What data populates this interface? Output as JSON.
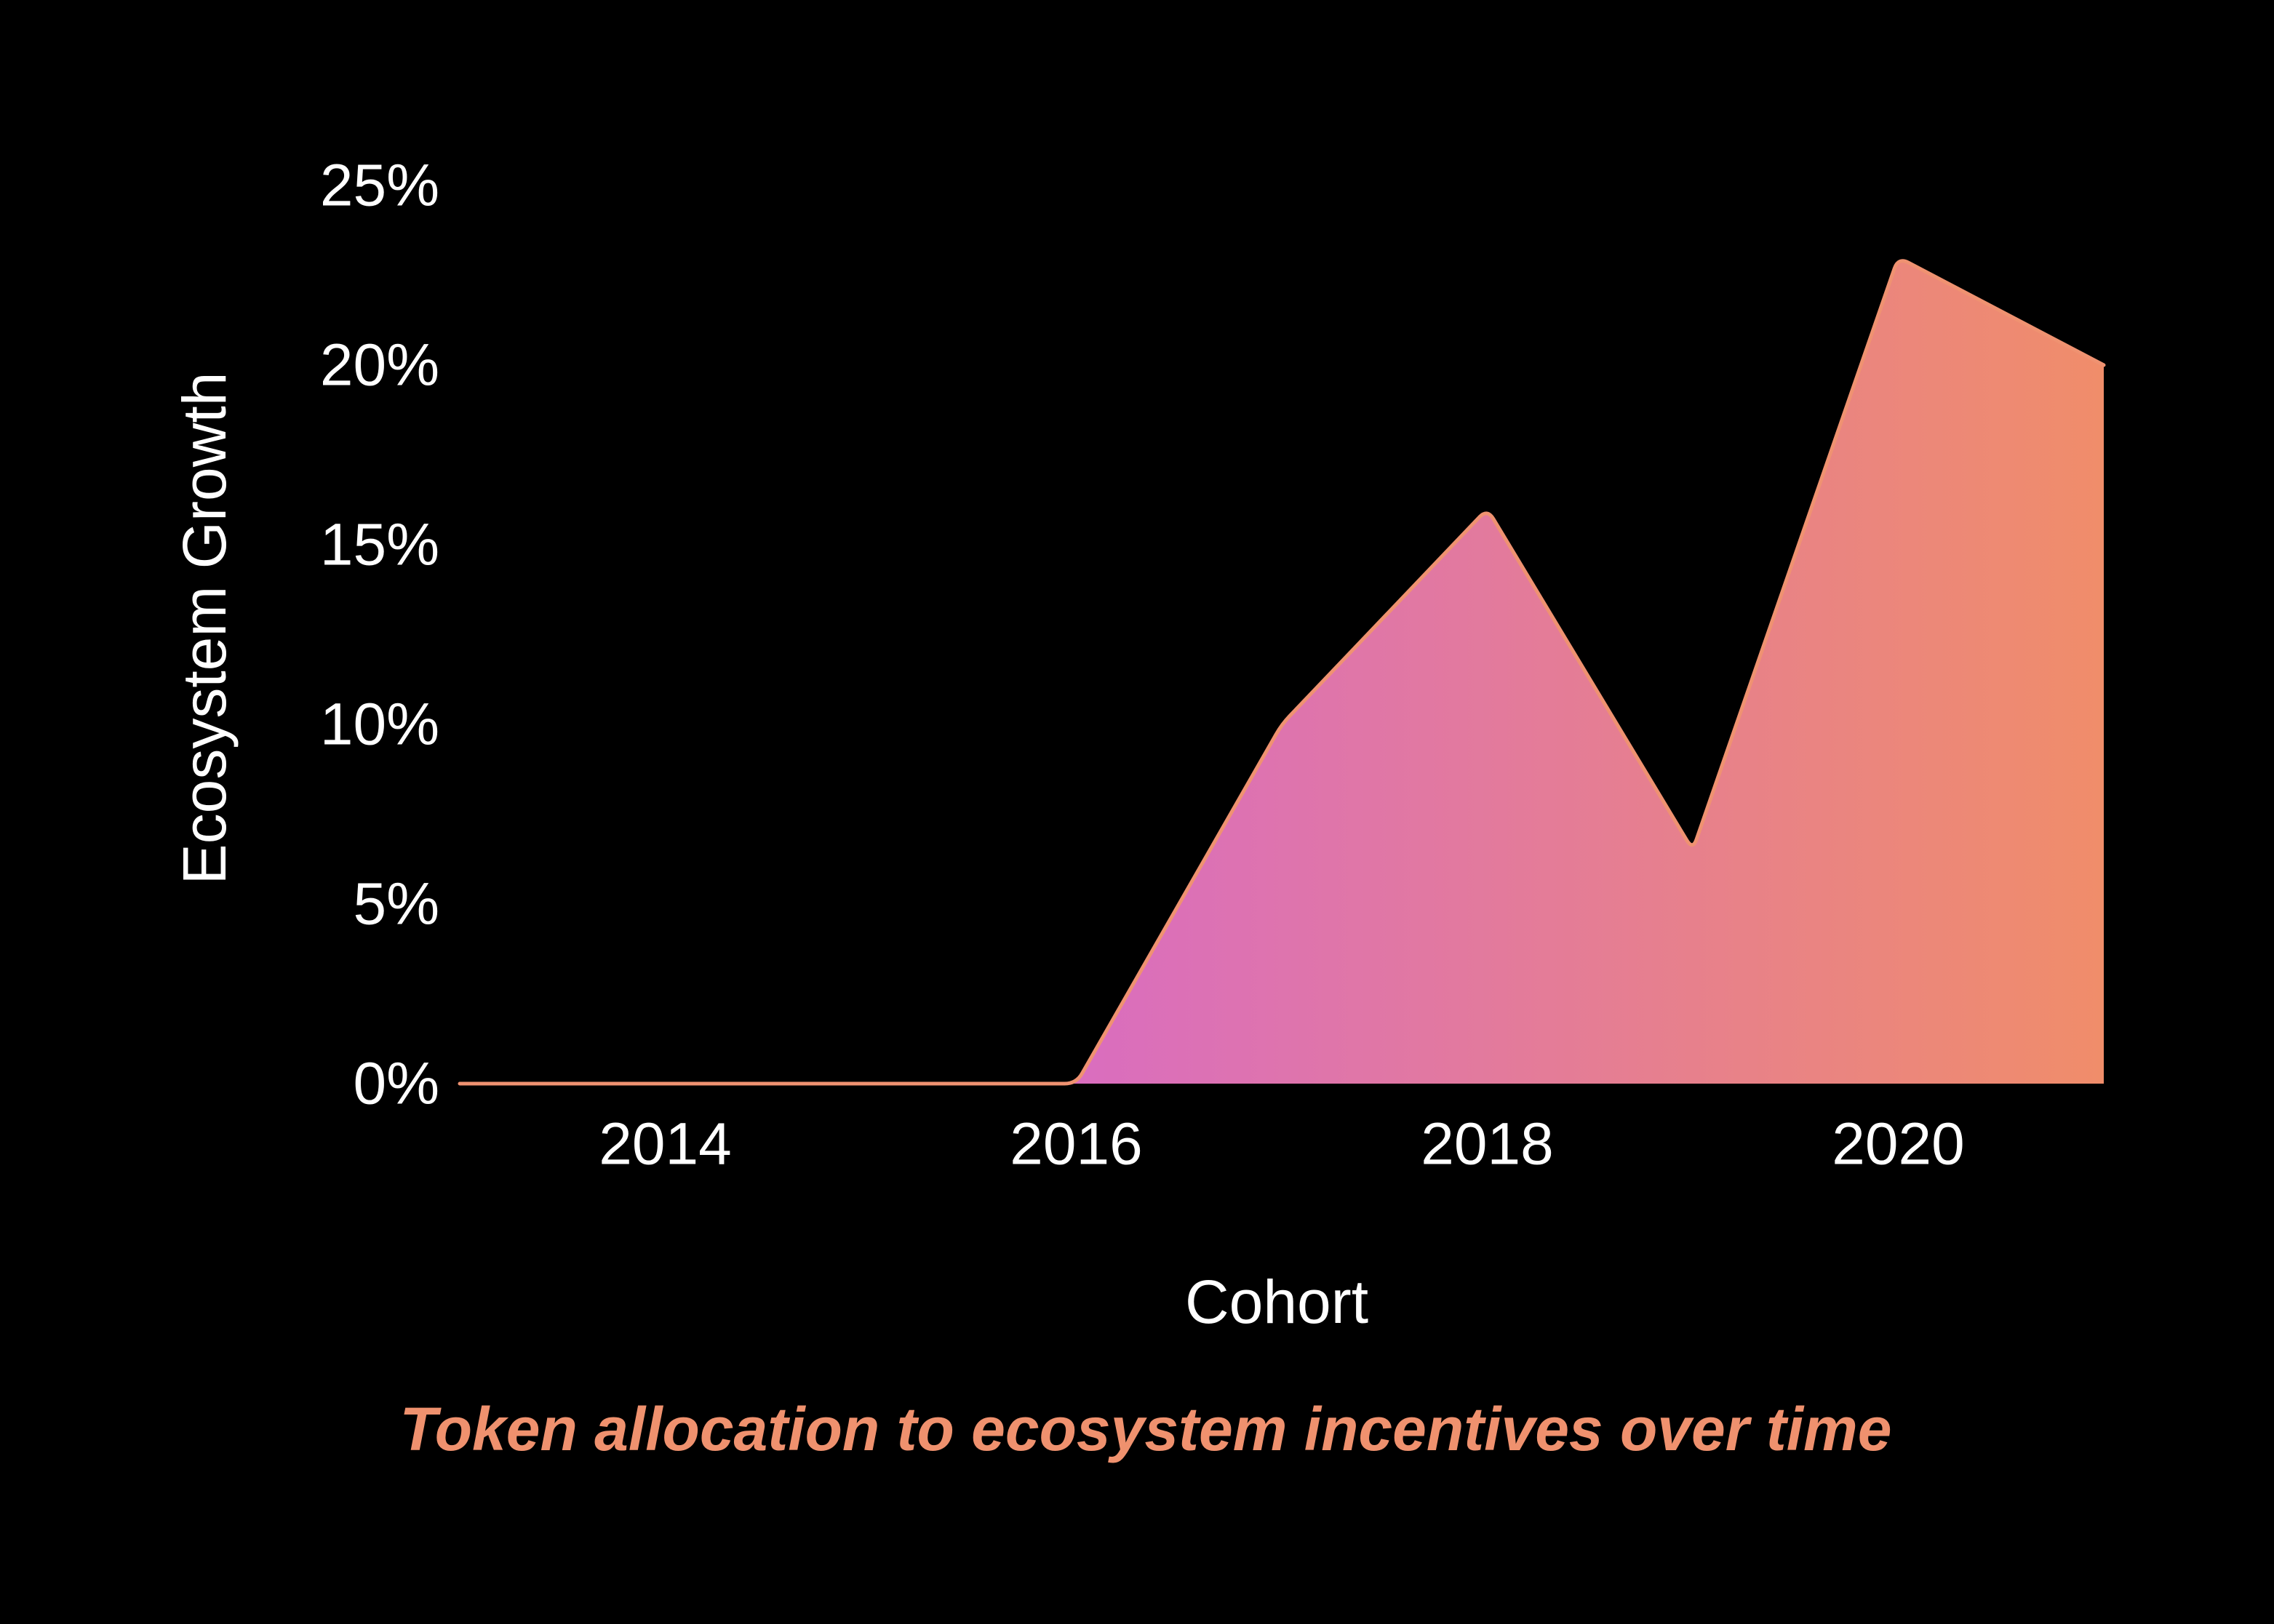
{
  "figure": {
    "background_color": "#000000",
    "text_color": "#ffffff",
    "accent_color": "#ef916e",
    "caption": "Token allocation to ecosystem incentives over time"
  },
  "chart_data": {
    "type": "area",
    "title": "",
    "xlabel": "Cohort",
    "ylabel": "Ecosystem Growth",
    "x": [
      2013,
      2014,
      2015,
      2016,
      2017,
      2018,
      2019,
      2020,
      2021
    ],
    "values": [
      0,
      0,
      0,
      0,
      10,
      16,
      6.5,
      23,
      20
    ],
    "series": [
      {
        "name": "Ecosystem Growth",
        "values": [
          0,
          0,
          0,
          0,
          10,
          16,
          6.5,
          23,
          20
        ]
      }
    ],
    "x_tick_years": [
      2014,
      2016,
      2018,
      2020
    ],
    "x_tick_labels": [
      "2014",
      "2016",
      "2018",
      "2020"
    ],
    "y_tick_values": [
      0,
      5,
      10,
      15,
      20,
      25
    ],
    "y_tick_labels": [
      "0%",
      "5%",
      "10%",
      "15%",
      "20%",
      "25%"
    ],
    "xlim": [
      2013,
      2021
    ],
    "ylim": [
      0,
      25
    ],
    "grid": false,
    "legend_position": "none",
    "line_color": "#ef9271",
    "fill_gradient": {
      "direction": "left-to-right",
      "from": "#cc5af2",
      "to": "#f08d6a"
    }
  }
}
